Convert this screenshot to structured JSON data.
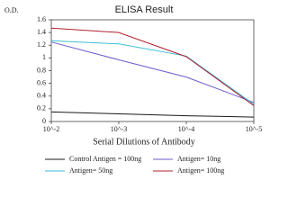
{
  "chart_data": {
    "type": "line",
    "title": "ELISA Result",
    "y_label": "O.D.",
    "x_label": "Serial Dilutions of Antibody",
    "x": [
      0.01,
      0.001,
      0.0001,
      1e-05
    ],
    "xlim": [
      0.01,
      1e-05
    ],
    "x_log": true,
    "xticks": [
      {
        "value": 0.01,
        "label": "10^-2"
      },
      {
        "value": 0.001,
        "label": "10^-3"
      },
      {
        "value": 0.0001,
        "label": "10^-4"
      },
      {
        "value": 1e-05,
        "label": "10^-5"
      }
    ],
    "ylim": [
      0,
      1.6
    ],
    "yticks": [
      0,
      0.2,
      0.4,
      0.6,
      0.8,
      1,
      1.2,
      1.4,
      1.6
    ],
    "series": [
      {
        "name": "Control Antigen = 100ng",
        "color": "#1a1a1a",
        "values": [
          0.15,
          0.12,
          0.09,
          0.07
        ]
      },
      {
        "name": "Antigen= 10ng",
        "color": "#6a5acd",
        "values": [
          1.25,
          0.97,
          0.7,
          0.3
        ]
      },
      {
        "name": "Antigen= 50ng",
        "color": "#3cc0d8",
        "values": [
          1.27,
          1.22,
          1.03,
          0.27
        ]
      },
      {
        "name": "Antigen= 100ng",
        "color": "#b02030",
        "values": [
          1.47,
          1.4,
          1.02,
          0.25
        ]
      }
    ]
  }
}
